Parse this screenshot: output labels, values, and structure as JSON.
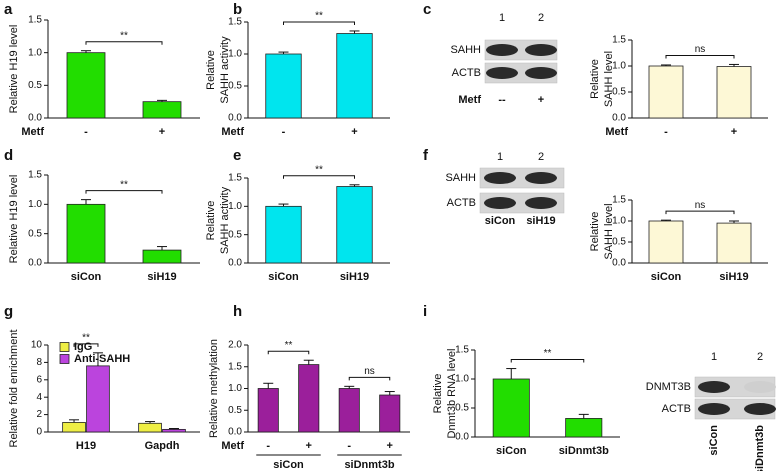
{
  "panel_labels": [
    "a",
    "b",
    "c",
    "d",
    "e",
    "f",
    "g",
    "h",
    "i"
  ],
  "chart_data": [
    {
      "type": "bar",
      "ylabel": [
        "Relative H19 level"
      ],
      "x_prefix": "Metf",
      "categories": [
        "-",
        "+"
      ],
      "series": [
        {
          "color": "#22dd00",
          "values": [
            1.0,
            0.25
          ],
          "errors": [
            0.03,
            0.02
          ]
        }
      ],
      "ylim": [
        0,
        1.5
      ],
      "yticks": [
        {
          "value": 0,
          "label": "0.0"
        },
        {
          "value": 0.5,
          "label": "0.5"
        },
        {
          "value": 1,
          "label": "1.0"
        },
        {
          "value": 1.5,
          "label": "1.5"
        }
      ],
      "brackets": [
        {
          "label": "**",
          "span": [
            0,
            1
          ]
        }
      ]
    },
    {
      "type": "bar",
      "ylabel": [
        "Relative",
        "SAHH activity"
      ],
      "x_prefix": "Metf",
      "categories": [
        "-",
        "+"
      ],
      "series": [
        {
          "color": "#00e5ee",
          "values": [
            1.0,
            1.32
          ],
          "errors": [
            0.03,
            0.04
          ]
        }
      ],
      "ylim": [
        0,
        1.5
      ],
      "yticks": [
        {
          "value": 0,
          "label": "0.0"
        },
        {
          "value": 0.5,
          "label": "0.5"
        },
        {
          "value": 1,
          "label": "1.0"
        },
        {
          "value": 1.5,
          "label": "1.5"
        }
      ],
      "brackets": [
        {
          "label": "**",
          "span": [
            0,
            1
          ]
        }
      ]
    },
    {
      "type": "bar",
      "ylabel": [
        "Relative",
        "SAHH level"
      ],
      "x_prefix": "Metf",
      "categories": [
        "-",
        "+"
      ],
      "series": [
        {
          "color": "#fdf8d6",
          "values": [
            1.0,
            0.99
          ],
          "errors": [
            0.02,
            0.04
          ]
        }
      ],
      "ylim": [
        0,
        1.5
      ],
      "yticks": [
        {
          "value": 0,
          "label": "0.0"
        },
        {
          "value": 0.5,
          "label": "0.5"
        },
        {
          "value": 1,
          "label": "1.0"
        },
        {
          "value": 1.5,
          "label": "1.5"
        }
      ],
      "brackets": [
        {
          "label": "ns",
          "span": [
            0,
            1
          ]
        }
      ]
    },
    {
      "type": "bar",
      "ylabel": [
        "Relative H19 level"
      ],
      "categories": [
        "siCon",
        "siH19"
      ],
      "series": [
        {
          "color": "#22dd00",
          "values": [
            1.0,
            0.22
          ],
          "errors": [
            0.08,
            0.06
          ]
        }
      ],
      "ylim": [
        0,
        1.5
      ],
      "yticks": [
        {
          "value": 0,
          "label": "0.0"
        },
        {
          "value": 0.5,
          "label": "0.5"
        },
        {
          "value": 1,
          "label": "1.0"
        },
        {
          "value": 1.5,
          "label": "1.5"
        }
      ],
      "brackets": [
        {
          "label": "**",
          "span": [
            0,
            1
          ]
        }
      ]
    },
    {
      "type": "bar",
      "ylabel": [
        "Relative",
        "SAHH activity"
      ],
      "categories": [
        "siCon",
        "siH19"
      ],
      "series": [
        {
          "color": "#00e5ee",
          "values": [
            1.0,
            1.35
          ],
          "errors": [
            0.04,
            0.03
          ]
        }
      ],
      "ylim": [
        0,
        1.5
      ],
      "yticks": [
        {
          "value": 0,
          "label": "0.0"
        },
        {
          "value": 0.5,
          "label": "0.5"
        },
        {
          "value": 1,
          "label": "1.0"
        },
        {
          "value": 1.5,
          "label": "1.5"
        }
      ],
      "brackets": [
        {
          "label": "**",
          "span": [
            0,
            1
          ]
        }
      ]
    },
    {
      "type": "bar",
      "ylabel": [
        "Relative",
        "SAHH level"
      ],
      "categories": [
        "siCon",
        "siH19"
      ],
      "series": [
        {
          "color": "#fdf8d6",
          "values": [
            1.0,
            0.95
          ],
          "errors": [
            0.02,
            0.05
          ]
        }
      ],
      "ylim": [
        0,
        1.5
      ],
      "yticks": [
        {
          "value": 0,
          "label": "0.0"
        },
        {
          "value": 0.5,
          "label": "0.5"
        },
        {
          "value": 1,
          "label": "1.0"
        },
        {
          "value": 1.5,
          "label": "1.5"
        }
      ],
      "brackets": [
        {
          "label": "ns",
          "span": [
            0,
            1
          ]
        }
      ]
    },
    {
      "type": "bar",
      "ylabel": [
        "Relative fold enrichment"
      ],
      "categories": [
        "H19",
        "Gapdh"
      ],
      "series": [
        {
          "name": "IgG",
          "color": "#eeee44",
          "values": [
            1.1,
            1.0
          ],
          "errors": [
            0.3,
            0.2
          ]
        },
        {
          "name": "Anti-SAHH",
          "color": "#bb44dd",
          "values": [
            7.6,
            0.3
          ],
          "errors": [
            1.5,
            0.1
          ]
        }
      ],
      "legend": "upper left",
      "ylim": [
        0,
        10
      ],
      "yticks": [
        0,
        2,
        4,
        6,
        8,
        10
      ],
      "brackets": [
        {
          "label": "**",
          "span": [
            0,
            0
          ]
        }
      ]
    },
    {
      "type": "bar",
      "ylabel": [
        "Relative methylation"
      ],
      "x_prefix": "Metf",
      "categories": [
        "-",
        "+",
        "-",
        "+"
      ],
      "groups": [
        "siCon",
        "siDnmt3b"
      ],
      "series": [
        {
          "color": "#9b1f9b",
          "values": [
            1.0,
            1.55,
            1.0,
            0.85
          ],
          "errors": [
            0.12,
            0.1,
            0.05,
            0.08
          ]
        }
      ],
      "ylim": [
        0,
        2
      ],
      "yticks": [
        {
          "value": 0,
          "label": "0.0"
        },
        {
          "value": 0.5,
          "label": "0.5"
        },
        {
          "value": 1,
          "label": "1.0"
        },
        {
          "value": 1.5,
          "label": "1.5"
        },
        {
          "value": 2,
          "label": "2.0"
        }
      ],
      "brackets": [
        {
          "label": "**",
          "span": [
            0,
            1
          ]
        },
        {
          "label": "ns",
          "span": [
            2,
            3
          ]
        }
      ]
    },
    {
      "type": "bar",
      "ylabel": [
        "Relative",
        "Dnmt3b RNA level"
      ],
      "categories": [
        "siCon",
        "siDnmt3b"
      ],
      "series": [
        {
          "color": "#22dd00",
          "values": [
            1.0,
            0.32
          ],
          "errors": [
            0.18,
            0.07
          ]
        }
      ],
      "ylim": [
        0,
        1.5
      ],
      "yticks": [
        {
          "value": 0,
          "label": "0.0"
        },
        {
          "value": 0.5,
          "label": "0.5"
        },
        {
          "value": 1,
          "label": "1.0"
        },
        {
          "value": 1.5,
          "label": "1.5"
        }
      ],
      "brackets": [
        {
          "label": "**",
          "span": [
            0,
            1
          ]
        }
      ]
    }
  ],
  "blots": [
    {
      "lanes": [
        "1",
        "2"
      ],
      "rows": [
        "SAHH",
        "ACTB"
      ],
      "condition_prefix": "Metf",
      "conditions": [
        "--",
        "+"
      ]
    },
    {
      "lanes": [
        "1",
        "2"
      ],
      "rows": [
        "SAHH",
        "ACTB"
      ],
      "conditions": [
        "siCon",
        "siH19"
      ]
    },
    {
      "lanes": [
        "1",
        "2"
      ],
      "rows": [
        "DNMT3B",
        "ACTB"
      ],
      "conditions": [
        "siCon",
        "siDnmt3b"
      ]
    }
  ]
}
